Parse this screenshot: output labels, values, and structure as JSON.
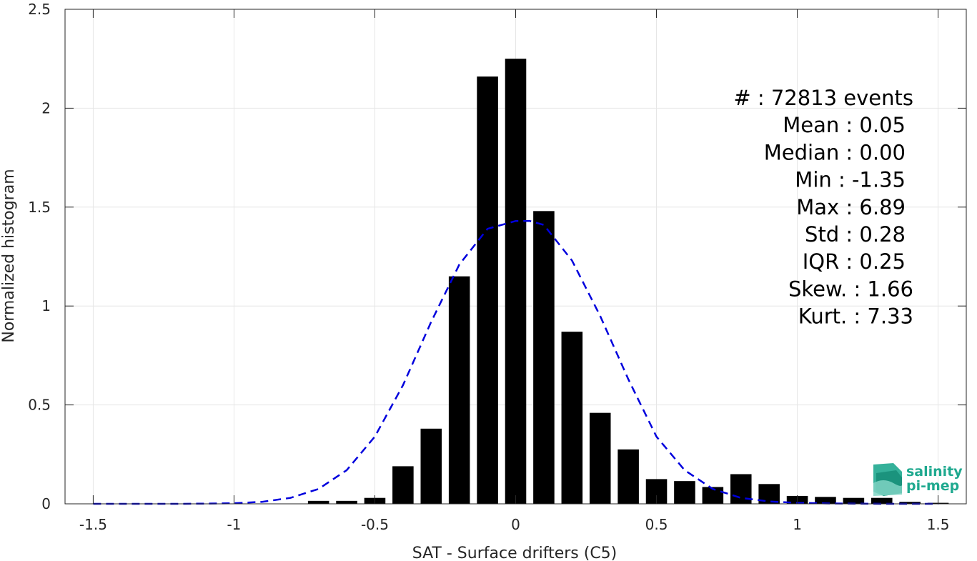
{
  "chart_data": {
    "type": "bar",
    "xlabel": "SAT - Surface drifters (C5)",
    "ylabel": "Normalized histogram",
    "xlim": [
      -1.6,
      1.6
    ],
    "ylim": [
      0,
      2.5
    ],
    "xticks": [
      -1.5,
      -1,
      -0.5,
      0,
      0.5,
      1,
      1.5
    ],
    "xtick_labels": [
      "-1.5",
      "-1",
      "-0.5",
      "0",
      "0.5",
      "1",
      "1.5"
    ],
    "yticks": [
      0,
      0.5,
      1,
      1.5,
      2,
      2.5
    ],
    "ytick_labels": [
      "0",
      "0.5",
      "1",
      "1.5",
      "2",
      "2.5"
    ],
    "grid": true,
    "bar_width": 0.075,
    "bars": {
      "x": [
        -1.5,
        -1.4,
        -1.3,
        -1.2,
        -1.1,
        -1.0,
        -0.9,
        -0.8,
        -0.7,
        -0.6,
        -0.5,
        -0.4,
        -0.3,
        -0.2,
        -0.1,
        0.0,
        0.1,
        0.2,
        0.3,
        0.4,
        0.5,
        0.6,
        0.7,
        0.8,
        0.9,
        1.0,
        1.1,
        1.2,
        1.3,
        1.4,
        1.5
      ],
      "values": [
        0,
        0,
        0,
        0,
        0,
        0,
        0,
        0,
        0.015,
        0.015,
        0.03,
        0.19,
        0.38,
        1.15,
        2.16,
        2.25,
        1.48,
        0.87,
        0.46,
        0.275,
        0.125,
        0.115,
        0.085,
        0.15,
        0.1,
        0.04,
        0.035,
        0.03,
        0.03,
        0.01,
        0.005
      ],
      "color": "#000000"
    },
    "fit_curve": {
      "style": "dashed",
      "color": "#0000dd",
      "x": [
        -1.5,
        -1.4,
        -1.3,
        -1.2,
        -1.1,
        -1.0,
        -0.9,
        -0.8,
        -0.7,
        -0.6,
        -0.5,
        -0.4,
        -0.3,
        -0.2,
        -0.1,
        0.0,
        0.05,
        0.1,
        0.2,
        0.3,
        0.4,
        0.5,
        0.6,
        0.7,
        0.8,
        0.9,
        1.0,
        1.1,
        1.2,
        1.3,
        1.4,
        1.5
      ],
      "y": [
        0,
        0,
        0,
        0,
        0.001,
        0.003,
        0.01,
        0.03,
        0.075,
        0.17,
        0.34,
        0.6,
        0.92,
        1.21,
        1.39,
        1.43,
        1.43,
        1.41,
        1.23,
        0.95,
        0.63,
        0.34,
        0.17,
        0.075,
        0.03,
        0.012,
        0.005,
        0.002,
        0.001,
        0,
        0,
        0
      ]
    }
  },
  "stats": [
    {
      "text": "#  : 72813 events"
    },
    {
      "text": "Mean : 0.05"
    },
    {
      "text": "Median : 0.00"
    },
    {
      "text": "Min : -1.35"
    },
    {
      "text": "Max : 6.89"
    },
    {
      "text": "Std : 0.28"
    },
    {
      "text": "IQR : 0.25"
    },
    {
      "text": "Skew. : 1.66"
    },
    {
      "text": "Kurt. : 7.33"
    }
  ],
  "logo": {
    "line1": "salinity",
    "line2": "pi-mep",
    "color": "#1fa98f"
  }
}
